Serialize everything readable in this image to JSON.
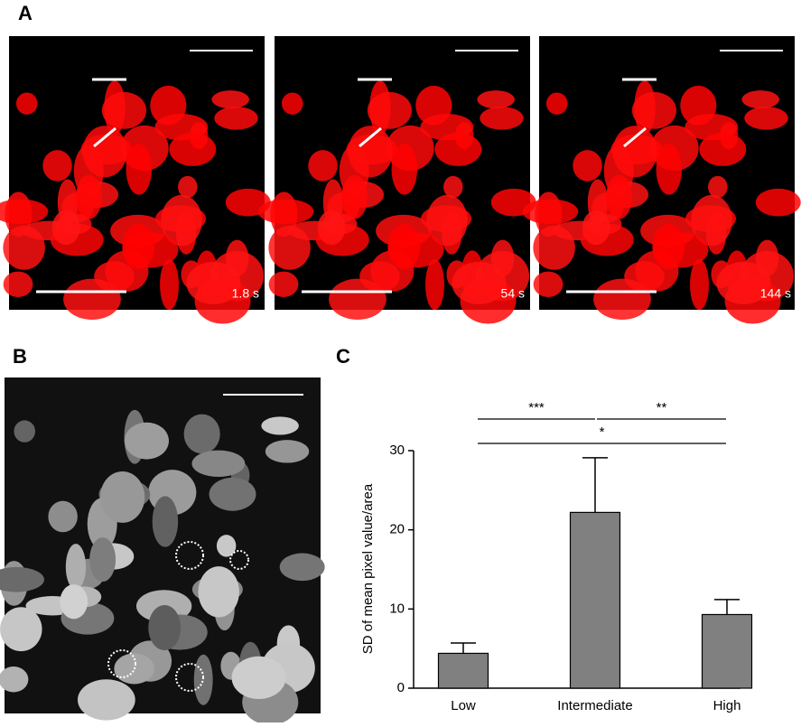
{
  "panel_labels": [
    "A",
    "B",
    "C"
  ],
  "timestamps": [
    "1.8 s",
    "54 s",
    "144 s"
  ],
  "chart_data": {
    "type": "bar",
    "categories": [
      "Low",
      "Intermediate",
      "High"
    ],
    "values": [
      4.4,
      22.2,
      9.3
    ],
    "errors": [
      1.3,
      6.9,
      1.9
    ],
    "color": "#808080",
    "ylabel": "SD of mean pixel value/area",
    "ylim": [
      0,
      30
    ],
    "yticks": [
      0,
      10,
      20,
      30
    ],
    "annotations": [
      {
        "text": "***",
        "from": 0,
        "to": 1
      },
      {
        "text": "**",
        "from": 1,
        "to": 2
      },
      {
        "text": "*",
        "from": 0,
        "to": 2
      }
    ]
  }
}
